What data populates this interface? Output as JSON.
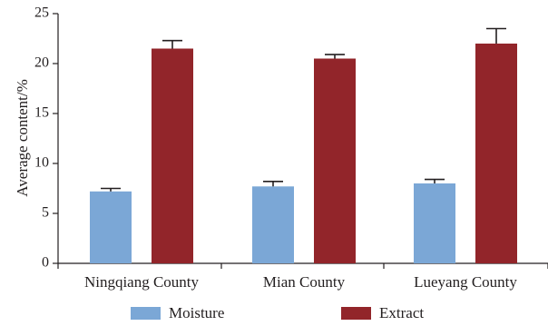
{
  "chart_data": {
    "type": "bar",
    "categories": [
      "Ningqiang County",
      "Mian County",
      "Lueyang County"
    ],
    "series": [
      {
        "name": "Moisture",
        "values": [
          7.2,
          7.7,
          8.0
        ],
        "errors": [
          0.3,
          0.5,
          0.4
        ],
        "color": "#7ba7d6"
      },
      {
        "name": "Extract",
        "values": [
          21.5,
          20.5,
          22.0
        ],
        "errors": [
          0.8,
          0.4,
          1.5
        ],
        "color": "#92252a"
      }
    ],
    "ylabel": "Average content/%",
    "xlabel": "",
    "ylim": [
      0,
      25
    ],
    "yticks": [
      0,
      5,
      10,
      15,
      20,
      25
    ],
    "legend_position": "bottom"
  }
}
